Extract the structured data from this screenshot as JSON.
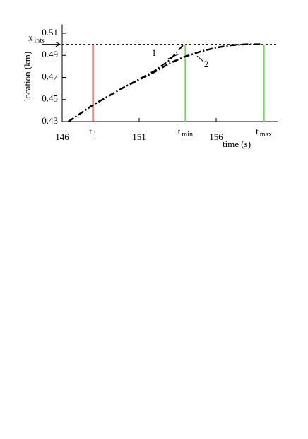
{
  "chart_data": {
    "type": "line",
    "xlabel": "time (s)",
    "ylabel": "location (km)",
    "xlim": [
      146,
      160
    ],
    "xticks": [
      146,
      151,
      156
    ],
    "ylim": [
      0.43,
      0.518
    ],
    "yticks": [
      0.43,
      0.45,
      0.47,
      0.49,
      0.51
    ],
    "series": [
      {
        "name": "1",
        "color": "#000000",
        "x": [
          146.4,
          148,
          150,
          152,
          153,
          153.9
        ],
        "values": [
          0.43,
          0.445,
          0.461,
          0.476,
          0.486,
          0.5
        ]
      },
      {
        "name": "2",
        "color": "#000000",
        "x": [
          146.4,
          148,
          150,
          152,
          153,
          154,
          155,
          156,
          157,
          158,
          159
        ],
        "values": [
          0.43,
          0.445,
          0.461,
          0.475,
          0.483,
          0.489,
          0.4935,
          0.497,
          0.4992,
          0.5,
          0.5
        ]
      }
    ],
    "hline": {
      "main": "x",
      "sub": "ints",
      "value": 0.5
    },
    "vlines": [
      {
        "main": "t",
        "sub": "1",
        "value": 148,
        "color": "#e53935"
      },
      {
        "main": "t",
        "sub": "min",
        "value": 154,
        "color": "#66dd44"
      },
      {
        "main": "t",
        "sub": "max",
        "value": 159.1,
        "color": "#66dd44"
      }
    ]
  }
}
